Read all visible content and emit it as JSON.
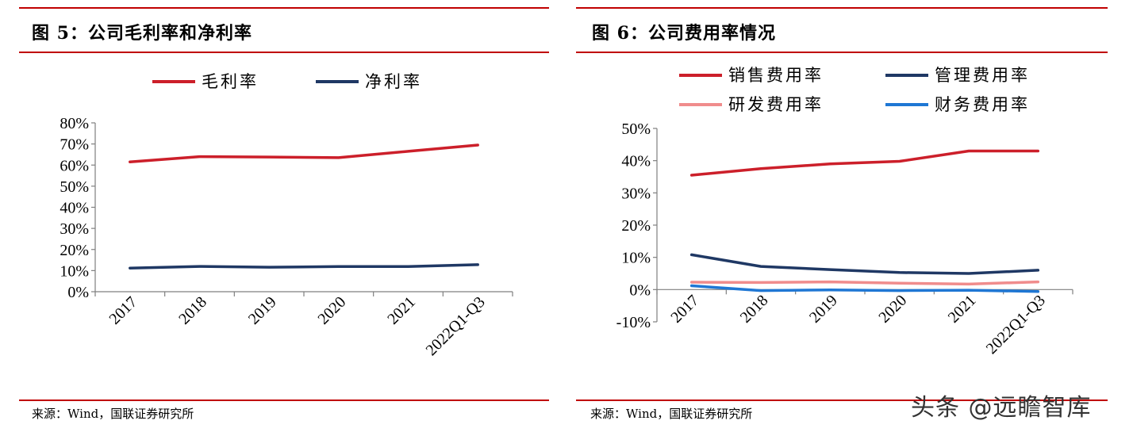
{
  "colors": {
    "accent_rule": "#c00000"
  },
  "left": {
    "title": "图 5：公司毛利率和净利率",
    "source": "来源：Wind，国联证券研究所",
    "chart_data": {
      "type": "line",
      "categories": [
        "2017",
        "2018",
        "2019",
        "2020",
        "2021",
        "2022Q1-Q3"
      ],
      "series": [
        {
          "name": "毛利率",
          "color": "#cc1f2a",
          "values": [
            61.5,
            64.0,
            63.8,
            63.5,
            66.5,
            69.5
          ]
        },
        {
          "name": "净利率",
          "color": "#1f3864",
          "values": [
            11.2,
            12.0,
            11.6,
            11.9,
            11.9,
            12.8
          ]
        }
      ],
      "yticks": [
        "0%",
        "10%",
        "20%",
        "30%",
        "40%",
        "50%",
        "60%",
        "70%",
        "80%"
      ],
      "ylim": [
        0,
        80
      ],
      "grid": false,
      "legend_position": "top"
    }
  },
  "right": {
    "title": "图 6：公司费用率情况",
    "source": "来源：Wind，国联证券研究所",
    "chart_data": {
      "type": "line",
      "categories": [
        "2017",
        "2018",
        "2019",
        "2020",
        "2021",
        "2022Q1-Q3"
      ],
      "series": [
        {
          "name": "销售费用率",
          "color": "#cc1f2a",
          "values": [
            35.5,
            37.5,
            39.0,
            39.8,
            43.0,
            43.0
          ]
        },
        {
          "name": "管理费用率",
          "color": "#1f3864",
          "values": [
            10.8,
            7.2,
            6.2,
            5.3,
            5.0,
            6.0
          ]
        },
        {
          "name": "研发费用率",
          "color": "#f08c8c",
          "values": [
            2.3,
            2.2,
            2.4,
            2.0,
            1.7,
            2.4
          ]
        },
        {
          "name": "财务费用率",
          "color": "#1f77d4",
          "values": [
            1.2,
            -0.3,
            -0.1,
            -0.3,
            -0.2,
            -0.6
          ]
        }
      ],
      "yticks": [
        "-10%",
        "0%",
        "10%",
        "20%",
        "30%",
        "40%",
        "50%"
      ],
      "ylim": [
        -10,
        50
      ],
      "grid": false,
      "legend_position": "top"
    }
  },
  "watermark": "头条 @远瞻智库"
}
